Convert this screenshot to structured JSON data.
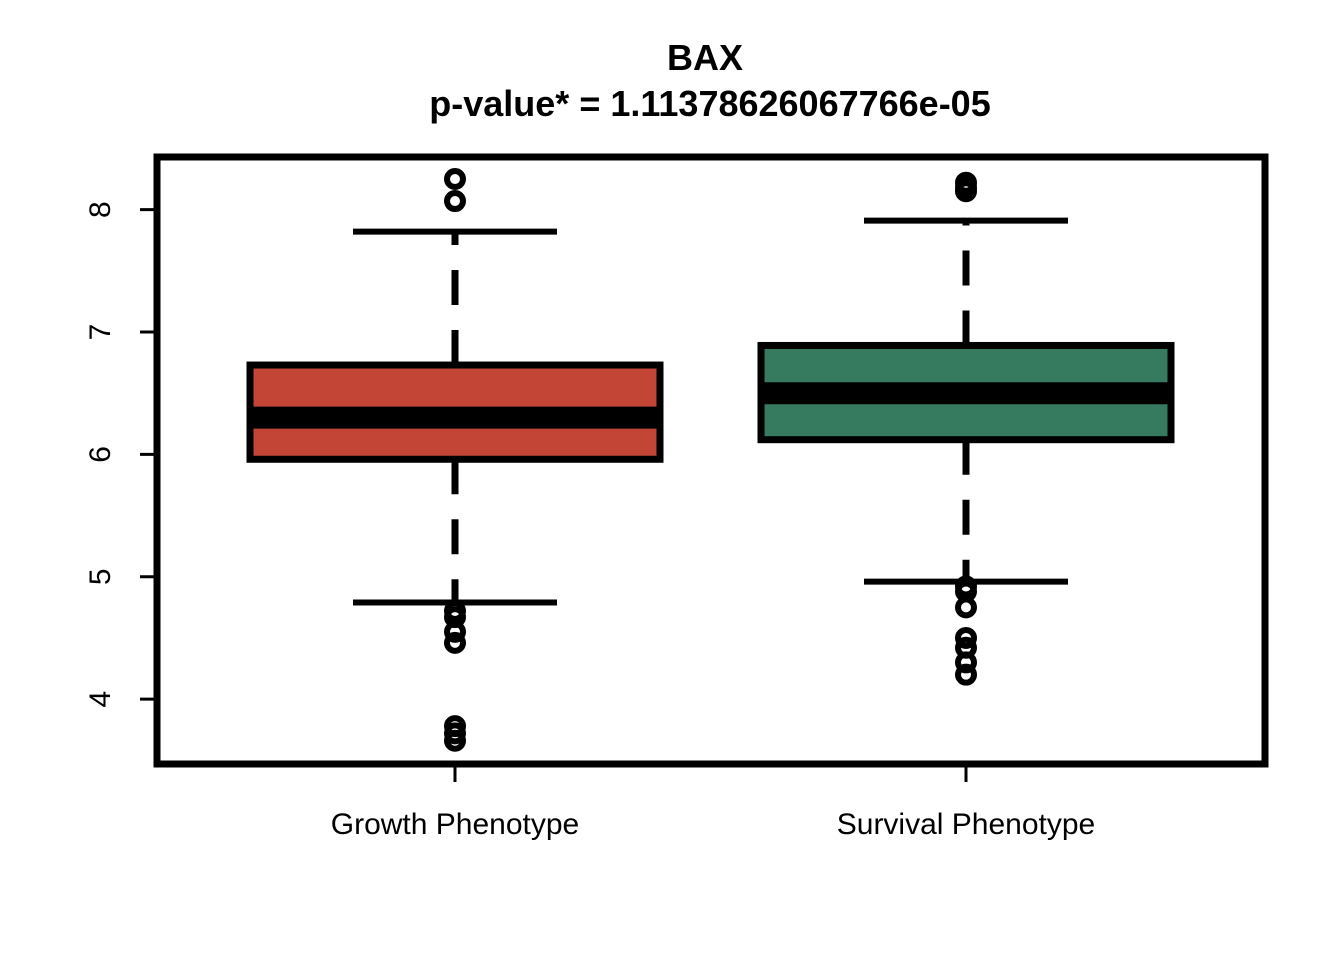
{
  "chart_data": {
    "type": "box",
    "title": "BAX",
    "subtitle": "p-value* = 1.11378626067766e-05",
    "xlabel": "",
    "ylabel": "",
    "ylim": [
      3.47,
      8.43
    ],
    "y_ticks": [
      4,
      5,
      6,
      7,
      8
    ],
    "y_tick_labels": [
      "4",
      "5",
      "6",
      "7",
      "8"
    ],
    "categories": [
      "Growth Phenotype",
      "Survival Phenotype"
    ],
    "boxes": [
      {
        "category": "Growth Phenotype",
        "color": "#c24536",
        "lower_whisker": 4.79,
        "q1": 5.96,
        "median": 6.3,
        "q3": 6.73,
        "upper_whisker": 7.82,
        "outliers": [
          8.25,
          8.07,
          4.72,
          4.67,
          4.55,
          4.46,
          3.78,
          3.72,
          3.66
        ]
      },
      {
        "category": "Survival Phenotype",
        "color": "#367a60",
        "lower_whisker": 4.96,
        "q1": 6.12,
        "median": 6.5,
        "q3": 6.89,
        "upper_whisker": 7.91,
        "outliers": [
          8.22,
          8.18,
          8.15,
          4.92,
          4.88,
          4.75,
          4.5,
          4.42,
          4.3,
          4.2
        ]
      }
    ],
    "grid": false,
    "legend": "none"
  }
}
